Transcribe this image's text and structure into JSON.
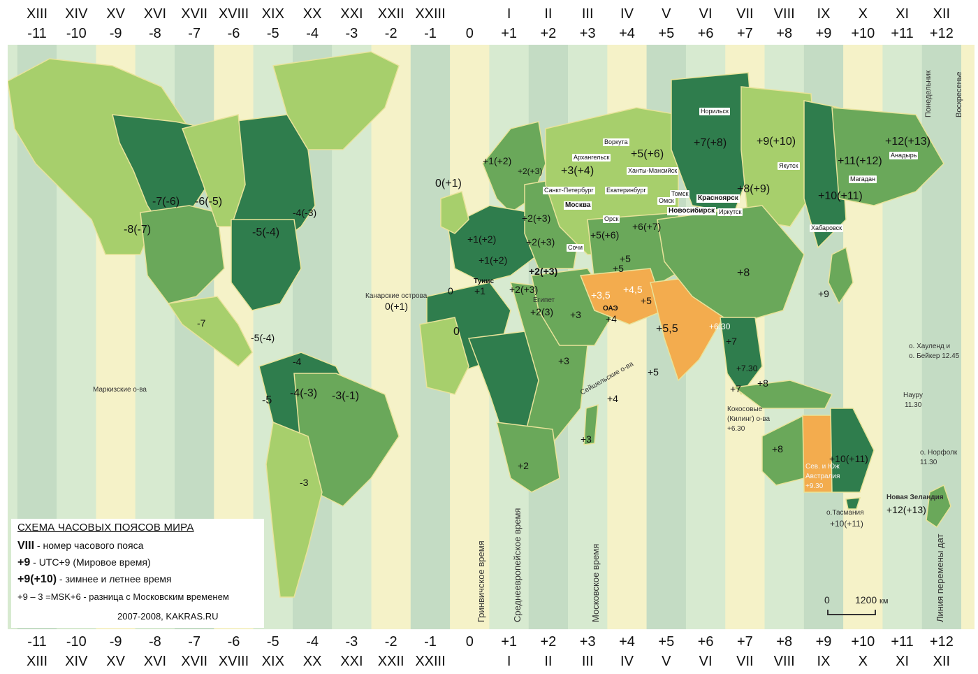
{
  "header": {
    "roman": [
      "XIII",
      "XIV",
      "XV",
      "XVI",
      "XVII",
      "XVIII",
      "XIX",
      "XX",
      "XXI",
      "XXII",
      "XXIII",
      "",
      "I",
      "II",
      "III",
      "IV",
      "V",
      "VI",
      "VII",
      "VIII",
      "IX",
      "X",
      "XI",
      "XII"
    ],
    "offsets": [
      "-11",
      "-10",
      "-9",
      "-8",
      "-7",
      "-6",
      "-5",
      "-4",
      "-3",
      "-2",
      "-1",
      "0",
      "+1",
      "+2",
      "+3",
      "+4",
      "+5",
      "+6",
      "+7",
      "+8",
      "+9",
      "+10",
      "+11",
      "+12"
    ]
  },
  "footer": {
    "offsets": [
      "-11",
      "-10",
      "-9",
      "-8",
      "-7",
      "-6",
      "-5",
      "-4",
      "-3",
      "-2",
      "-1",
      "0",
      "+1",
      "+2",
      "+3",
      "+4",
      "+5",
      "+6",
      "+7",
      "+8",
      "+9",
      "+10",
      "+11",
      "+12"
    ],
    "roman": [
      "XIII",
      "XIV",
      "XV",
      "XVI",
      "XVII",
      "XVIII",
      "XIX",
      "XX",
      "XXI",
      "XXII",
      "XXIII",
      "",
      "I",
      "II",
      "III",
      "IV",
      "V",
      "VI",
      "VII",
      "VIII",
      "IX",
      "X",
      "XI",
      "XII"
    ]
  },
  "colors": {
    "ocean_light": "#d7ead0",
    "ocean_mid": "#c4dcc4",
    "ocean_cream": "#f5f2c8",
    "land_light": "#a7cf6c",
    "land_mid": "#6aa85a",
    "land_dark": "#2f7d4d",
    "land_orange": "#f3ac4e",
    "border": "#e8e39a"
  },
  "zones": {
    "z_m8": "-8(-7)",
    "z_m7a": "-7(-6)",
    "z_m6": "-6(-5)",
    "z_m5a": "-5(-4)",
    "z_m4a": "-4(-3)",
    "z_m7b": "-7",
    "z_m5b": "-5(-4)",
    "z_m4b": "-4",
    "z_m5c": "-5",
    "z_m4c": "-4(-3)",
    "z_m3a": "-3(-1)",
    "z_m3b": "-3",
    "z_0a": "0(+1)",
    "z_0b": "0",
    "z_0c": "0",
    "z_canary": "0(+1)",
    "z_p1a": "+1(+2)",
    "z_p1b": "+1(+2)",
    "z_p1c": "+1(+2)",
    "z_p1d": "+1",
    "z_p2a": "+2(+3)",
    "z_p2b": "+2(+3)",
    "z_p2c": "+2(+3)",
    "z_p2d": "+2(+3)",
    "z_p2e": "+2(+3)",
    "z_p2f": "+2(3)",
    "z_p2g": "+2",
    "z_p3a": "+3(+4)",
    "z_p3b": "+3",
    "z_p3c": "+3",
    "z_p3d": "+3",
    "z_p35": "+3,5",
    "z_p4a": "+4",
    "z_p4b": "+4",
    "z_p45": "+4,5",
    "z_p5a": "+5(+6)",
    "z_p5b": "+5(+6)",
    "z_p5c": "+5",
    "z_p5d": "+5",
    "z_p5e": "+5",
    "z_p5f": "+5",
    "z_p55": "+5,5",
    "z_p630": "+6.30",
    "z_p6": "+6(+7)",
    "z_p7a": "+7(+8)",
    "z_p7b": "+7",
    "z_p7c": "+7",
    "z_p730": "+7.30",
    "z_p8a": "+8(+9)",
    "z_p8b": "+8",
    "z_p8c": "+8",
    "z_p8d": "+8",
    "z_p9a": "+9(+10)",
    "z_p9b": "+9",
    "z_p10a": "+10(+11)",
    "z_p10b": "+10(+11)",
    "z_p10c": "+10(+11)",
    "z_p11": "+11(+12)",
    "z_p12a": "+12(+13)",
    "z_p12b": "+12(+13)"
  },
  "cities": {
    "norilsk": "Норильск",
    "vorkuta": "Воркута",
    "arkhangelsk": "Архангельск",
    "khanty": "Ханты-Мансийск",
    "spb": "Санкт-Петербург",
    "ekb": "Екатеринбург",
    "moscow": "Москва",
    "tomsk": "Томск",
    "omsk": "Омск",
    "krasnoyarsk": "Красноярск",
    "novosibirsk": "Новосибирск",
    "irkutsk": "Иркутск",
    "orsk": "Орск",
    "sochi": "Сочи",
    "yakutsk": "Якутск",
    "magadan": "Магадан",
    "anadyr": "Анадырь",
    "khabarovsk": "Хабаровск"
  },
  "regions": {
    "tunis": "Тунис",
    "egypt": "Египет",
    "uae": "ОАЭ",
    "canary": "Канарские острова",
    "marquesas": "Маркизские о-ва",
    "seychelles": "Сейшельские о-ва",
    "cocos1": "Кокосовые",
    "cocos2": "(Килинг) о-ва",
    "cocos3": "+6.30",
    "howland1": "о. Хауленд и",
    "howland2": "о. Бейкер 12.45",
    "nauru1": "Науру",
    "nauru2": "11.30",
    "norfolk1": "о. Норфолк",
    "norfolk2": "11.30",
    "sa1": "Сев. и Юж",
    "sa2": "Австралия",
    "sa3": "+9.30",
    "tasmania1": "о.Тасмания",
    "tasmania2": "+10(+11)",
    "nz": "Новая Зеландия"
  },
  "meridians": {
    "greenwich": "Гринвичское время",
    "cet": "Среднеевропейское время",
    "moscow_time": "Московское время",
    "dateline": "Линия перемены дат",
    "monday": "Понедельник",
    "sunday": "Воскресенье"
  },
  "legend": {
    "title": "СХЕМА  ЧАСОВЫХ ПОЯСОВ  МИРА",
    "r1_key": "VIII",
    "r1_desc": " - номер часового пояса",
    "r2_key": "+9",
    "r2_desc": " - UTC+9 (Мировое время)",
    "r3_key": "+9(+10)",
    "r3_desc": " - зимнее и летнее время",
    "r4": "+9 – 3 =MSK+6 - разница с Московским временем",
    "credit": "2007-2008, KAKRAS.RU"
  },
  "scale": {
    "zero": "0",
    "value": "1200",
    "unit": "км"
  }
}
